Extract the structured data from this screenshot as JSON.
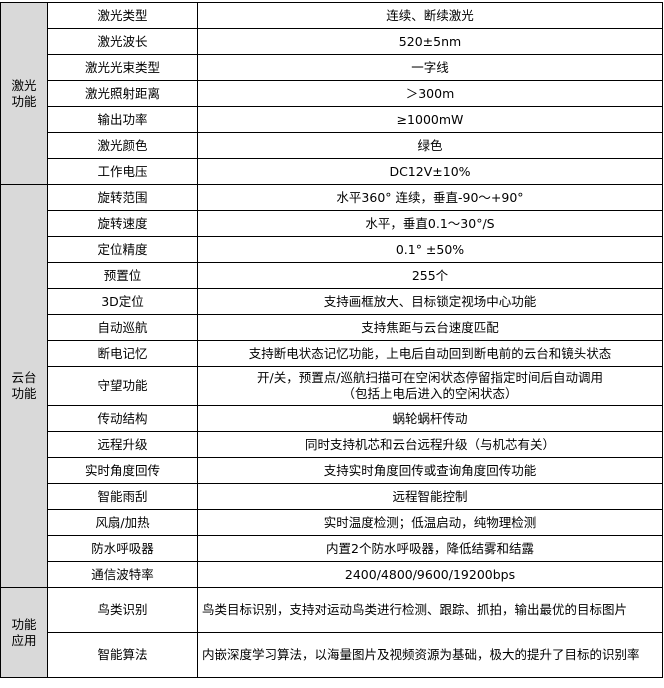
{
  "sections": [
    {
      "label": [
        "激光",
        "功能"
      ],
      "rows": [
        {
          "label": "激光类型",
          "value": "连续、断续激光"
        },
        {
          "label": "激光波长",
          "value": "520±5nm"
        },
        {
          "label": "激光光束类型",
          "value": "一字线"
        },
        {
          "label": "激光照射距离",
          "value": "＞300m"
        },
        {
          "label": "输出功率",
          "value": "≥1000mW"
        },
        {
          "label": "激光颜色",
          "value": "绿色"
        },
        {
          "label": "工作电压",
          "value": "DC12V±10%"
        }
      ]
    },
    {
      "label": [
        "云台",
        "功能"
      ],
      "rows": [
        {
          "label": "旋转范围",
          "value": "水平360° 连续，垂直-90～+90°"
        },
        {
          "label": "旋转速度",
          "value": "水平，垂直0.1～30°/S"
        },
        {
          "label": "定位精度",
          "value": "0.1° ±50%"
        },
        {
          "label": "预置位",
          "value": "255个"
        },
        {
          "label": "3D定位",
          "value": "支持画框放大、目标锁定视场中心功能"
        },
        {
          "label": "自动巡航",
          "value": "支持焦距与云台速度匹配"
        },
        {
          "label": "断电记忆",
          "value": "支持断电状态记忆功能，上电后自动回到断电前的云台和镜头状态"
        },
        {
          "label": "守望功能",
          "value": [
            "开/关，预置点/巡航扫描可在空闲状态停留指定时间后自动调用",
            "（包括上电后进入的空闲状态）"
          ]
        },
        {
          "label": "传动结构",
          "value": "蜗轮蜗杆传动"
        },
        {
          "label": "远程升级",
          "value": "同时支持机芯和云台远程升级（与机芯有关）"
        },
        {
          "label": "实时角度回传",
          "value": "支持实时角度回传或查询角度回传功能"
        },
        {
          "label": "智能雨刮",
          "value": "远程智能控制"
        },
        {
          "label": "风扇/加热",
          "value": "实时温度检测；低温启动，纯物理检测"
        },
        {
          "label": "防水呼吸器",
          "value": "内置2个防水呼吸器，降低结雾和结露"
        },
        {
          "label": "通信波特率",
          "value": "2400/4800/9600/19200bps"
        }
      ]
    },
    {
      "label": [
        "功能",
        "应用"
      ],
      "rows": [
        {
          "label": "鸟类识别",
          "value": "鸟类目标识别，支持对运动鸟类进行检测、跟踪、抓拍，输出最优的目标图片"
        },
        {
          "label": "智能算法",
          "value": "内嵌深度学习算法，以海量图片及视频资源为基础，极大的提升了目标的识别率"
        }
      ]
    }
  ]
}
